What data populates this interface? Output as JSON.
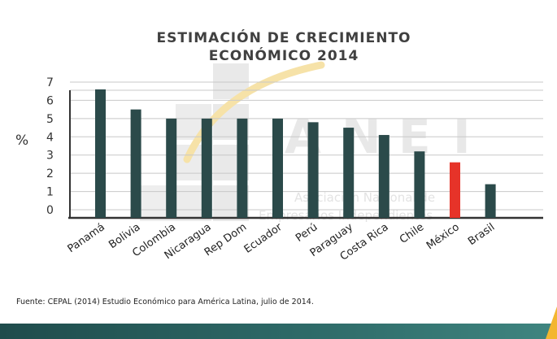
{
  "chart_data": {
    "type": "bar",
    "title": [
      "ESTIMACIÓN DE CRECIMIENTO",
      "ECONÓMICO 2014"
    ],
    "ylabel": "%",
    "ylim": [
      0,
      7
    ],
    "yticks": [
      0,
      1,
      2,
      3,
      4,
      5,
      6,
      7
    ],
    "grid": true,
    "categories": [
      "Panamá",
      "Bolivia",
      "Colombia",
      "Nicaragua",
      "Rep Dom",
      "Ecuador",
      "Perú",
      "Paraguay",
      "Costa Rica",
      "Chile",
      "México",
      "Brasil"
    ],
    "values": [
      6.6,
      5.5,
      5.0,
      5.0,
      5.0,
      5.0,
      4.8,
      4.5,
      4.1,
      3.2,
      2.6,
      1.4
    ],
    "bar_color": "#2b4a4a",
    "highlight": {
      "category": "México",
      "color": "#e63329"
    }
  },
  "watermark": {
    "letters": [
      "A",
      "N",
      "E",
      "I"
    ],
    "line1": "Asociación Nacional de",
    "line2": "Empresarios Independientes"
  },
  "source": "Fuente: CEPAL (2014) Estudio Económico para América Latina, julio de 2014.",
  "colors": {
    "footer": "#2b5c5a",
    "accent": "#f3b630"
  }
}
